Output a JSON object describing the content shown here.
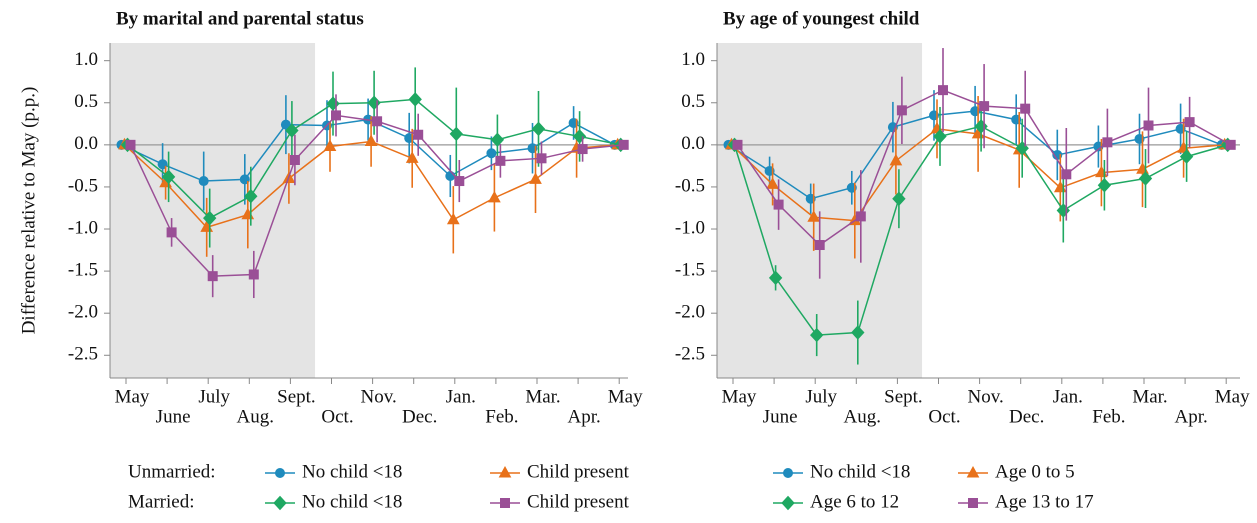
{
  "chart_data": [
    {
      "type": "line",
      "title": "By marital and parental status",
      "ylabel": "Difference relative to May (p.p.)",
      "categories": [
        "May",
        "June",
        "July",
        "Aug.",
        "Sept.",
        "Oct.",
        "Nov.",
        "Dec.",
        "Jan.",
        "Feb.",
        "Mar.",
        "Apr.",
        "May"
      ],
      "ylim": [
        -2.77,
        1.21
      ],
      "yticks": [
        {
          "value": 1,
          "label": "1.0"
        },
        0.5,
        {
          "value": 0,
          "label": "0.0"
        },
        -0.5,
        {
          "value": -1,
          "label": "-1.0"
        },
        -1.5,
        {
          "value": -2,
          "label": "-2.0"
        },
        -2.5
      ],
      "legend_rows": [
        "Unmarried:",
        "Married:"
      ],
      "series": [
        {
          "name": "No child <18",
          "color": "#1f8bbd",
          "marker": "circle",
          "values": [
            0,
            -0.23,
            -0.43,
            -0.41,
            0.24,
            0.23,
            0.3,
            0.08,
            -0.37,
            -0.1,
            -0.04,
            0.26,
            0
          ],
          "errors": [
            0,
            0.25,
            0.35,
            0.3,
            0.35,
            0.3,
            0.25,
            0.3,
            0.25,
            0.2,
            0.3,
            0.2,
            0
          ]
        },
        {
          "name": "Child present",
          "color": "#e8711a",
          "marker": "triangle",
          "values": [
            0,
            -0.45,
            -0.98,
            -0.83,
            -0.4,
            -0.02,
            0.04,
            -0.16,
            -0.89,
            -0.63,
            -0.41,
            -0.04,
            0
          ],
          "errors": [
            0,
            0.2,
            0.35,
            0.4,
            0.3,
            0.3,
            0.3,
            0.35,
            0.4,
            0.4,
            0.4,
            0.35,
            0
          ]
        },
        {
          "name": "No child <18",
          "color": "#1fa862",
          "marker": "diamond",
          "values": [
            0,
            -0.38,
            -0.87,
            -0.61,
            0.17,
            0.49,
            0.5,
            0.54,
            0.13,
            0.06,
            0.19,
            0.1,
            0
          ],
          "errors": [
            0,
            0.3,
            0.35,
            0.35,
            0.35,
            0.38,
            0.38,
            0.38,
            0.55,
            0.3,
            0.45,
            0.3,
            0
          ]
        },
        {
          "name": "Child present",
          "color": "#9a4f96",
          "marker": "square",
          "values": [
            0,
            -1.04,
            -1.56,
            -1.54,
            -0.18,
            0.35,
            0.28,
            0.12,
            -0.43,
            -0.19,
            -0.16,
            -0.05,
            0
          ],
          "errors": [
            0,
            0.17,
            0.25,
            0.28,
            0.3,
            0.25,
            0.25,
            0.25,
            0.25,
            0.2,
            0.2,
            0.15,
            0
          ]
        }
      ]
    },
    {
      "type": "line",
      "title": "By age of youngest child",
      "categories": [
        "May",
        "June",
        "July",
        "Aug.",
        "Sept.",
        "Oct.",
        "Nov.",
        "Dec.",
        "Jan.",
        "Feb.",
        "Mar.",
        "Apr.",
        "May"
      ],
      "ylim": [
        -2.77,
        1.21
      ],
      "yticks": [
        {
          "value": 1,
          "label": "1.0"
        },
        0.5,
        {
          "value": 0,
          "label": "0.0"
        },
        -0.5,
        {
          "value": -1,
          "label": "-1.0"
        },
        -1.5,
        {
          "value": -2,
          "label": "-2.0"
        },
        -2.5
      ],
      "series": [
        {
          "name": "No child <18",
          "color": "#1f8bbd",
          "marker": "circle",
          "values": [
            0,
            -0.31,
            -0.64,
            -0.51,
            0.21,
            0.35,
            0.4,
            0.3,
            -0.12,
            -0.02,
            0.07,
            0.19,
            0
          ],
          "errors": [
            0,
            0.17,
            0.18,
            0.2,
            0.3,
            0.3,
            0.3,
            0.3,
            0.3,
            0.25,
            0.3,
            0.3,
            0
          ]
        },
        {
          "name": "Age 0 to 5",
          "color": "#e8711a",
          "marker": "triangle",
          "values": [
            0,
            -0.47,
            -0.86,
            -0.9,
            -0.19,
            0.19,
            0.13,
            -0.06,
            -0.51,
            -0.33,
            -0.29,
            -0.04,
            0
          ],
          "errors": [
            0,
            0.25,
            0.4,
            0.45,
            0.4,
            0.35,
            0.45,
            0.45,
            0.4,
            0.4,
            0.45,
            0.35,
            0
          ]
        },
        {
          "name": "Age 6 to 12",
          "color": "#1fa862",
          "marker": "diamond",
          "values": [
            0,
            -1.58,
            -2.26,
            -2.23,
            -0.64,
            0.1,
            0.22,
            -0.04,
            -0.78,
            -0.48,
            -0.4,
            -0.14,
            0
          ],
          "errors": [
            0,
            0.15,
            0.25,
            0.38,
            0.35,
            0.35,
            0.3,
            0.35,
            0.38,
            0.3,
            0.35,
            0.3,
            0
          ]
        },
        {
          "name": "Age 13 to 17",
          "color": "#9a4f96",
          "marker": "square",
          "values": [
            0,
            -0.71,
            -1.19,
            -0.85,
            0.41,
            0.65,
            0.46,
            0.43,
            -0.35,
            0.03,
            0.23,
            0.27,
            0
          ],
          "errors": [
            0,
            0.3,
            0.4,
            0.55,
            0.4,
            0.5,
            0.5,
            0.45,
            0.55,
            0.4,
            0.45,
            0.3,
            0
          ]
        }
      ]
    }
  ]
}
